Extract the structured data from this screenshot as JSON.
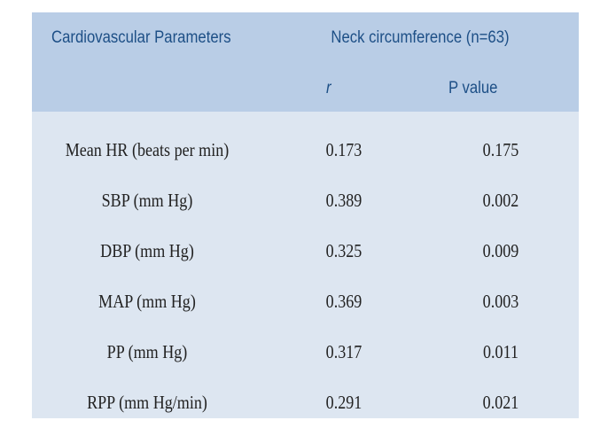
{
  "table": {
    "header": {
      "param_label": "Cardiovascular Parameters",
      "group_label": "Neck circumference (n=63)",
      "col_r": "r",
      "col_p": "P value"
    },
    "rows": [
      {
        "label": "Mean HR (beats per min)",
        "r": "0.173",
        "p": "0.175"
      },
      {
        "label": "SBP (mm Hg)",
        "r": "0.389",
        "p": "0.002"
      },
      {
        "label": "DBP (mm Hg)",
        "r": "0.325",
        "p": "0.009"
      },
      {
        "label": "MAP (mm Hg)",
        "r": "0.369",
        "p": "0.003"
      },
      {
        "label": "PP (mm Hg)",
        "r": "0.317",
        "p": "0.011"
      },
      {
        "label": "RPP (mm Hg/min)",
        "r": "0.291",
        "p": "0.021"
      }
    ]
  },
  "colors": {
    "header_bg": "#b9cde6",
    "body_bg": "#dde6f1",
    "header_text": "#1d4f86",
    "body_text": "#222222"
  }
}
